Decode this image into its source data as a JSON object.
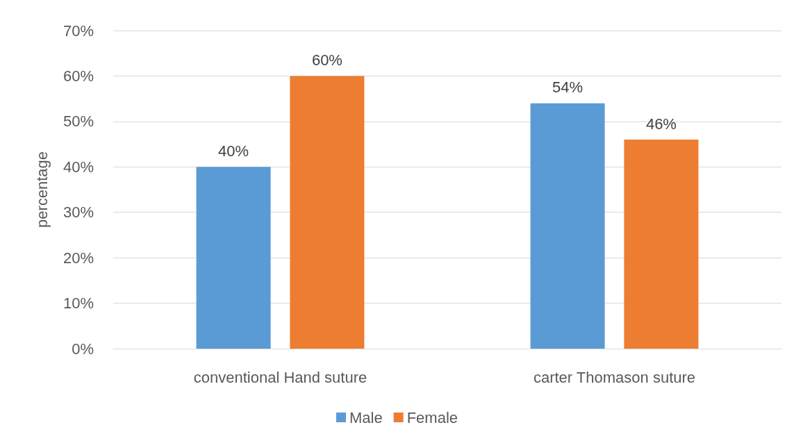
{
  "chart_data": {
    "type": "bar",
    "ylabel": "percentage",
    "categories": [
      "conventional Hand suture",
      "carter Thomason suture"
    ],
    "series": [
      {
        "name": "Male",
        "color": "#5b9bd5",
        "values": [
          40,
          54
        ],
        "value_labels": [
          "40%",
          "54%"
        ]
      },
      {
        "name": "Female",
        "color": "#ed7d31",
        "values": [
          60,
          46
        ],
        "value_labels": [
          "60%",
          "46%"
        ]
      }
    ],
    "ylim": [
      0,
      70
    ],
    "yticks": [
      {
        "value": 0,
        "label": "0%"
      },
      {
        "value": 10,
        "label": "10%"
      },
      {
        "value": 20,
        "label": "20%"
      },
      {
        "value": 30,
        "label": "30%"
      },
      {
        "value": 40,
        "label": "40%"
      },
      {
        "value": 50,
        "label": "50%"
      },
      {
        "value": 60,
        "label": "60%"
      },
      {
        "value": 70,
        "label": "70%"
      }
    ],
    "grid": "y",
    "legend": "bottom"
  }
}
